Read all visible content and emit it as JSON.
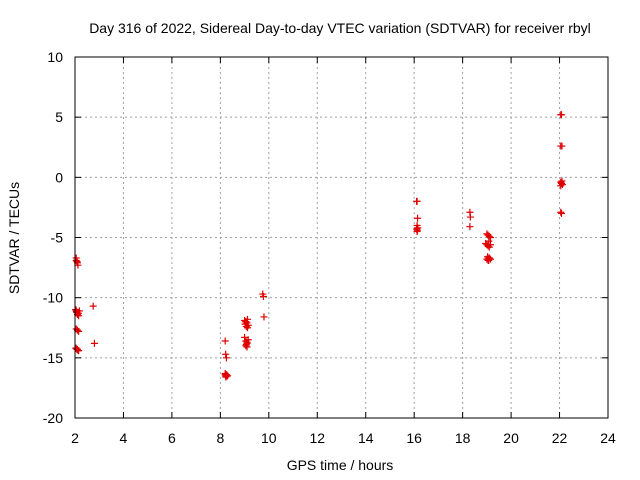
{
  "chart_data": {
    "type": "scatter",
    "title": "Day 316 of 2022, Sidereal Day-to-day VTEC variation (SDTVAR) for receiver rbyl",
    "xlabel": "GPS time / hours",
    "ylabel": "SDTVAR / TECUs",
    "xlim": [
      2,
      24
    ],
    "ylim": [
      -20,
      10
    ],
    "xticks": [
      2,
      4,
      6,
      8,
      10,
      12,
      14,
      16,
      18,
      20,
      22,
      24
    ],
    "yticks": [
      -20,
      -15,
      -10,
      -5,
      0,
      5,
      10
    ],
    "grid": true,
    "marker": "+",
    "color": "#e00000",
    "series": [
      {
        "name": "SDTVAR",
        "x": [
          2.05,
          2.05,
          2.08,
          2.1,
          2.12,
          2.03,
          2.05,
          2.08,
          2.12,
          2.15,
          2.03,
          2.06,
          2.1,
          2.14,
          2.18,
          2.05,
          2.1,
          2.15,
          2.03,
          2.08,
          2.13,
          2.05,
          2.1,
          2.15,
          2.75,
          2.8,
          8.2,
          8.22,
          8.25,
          8.2,
          8.22,
          8.25,
          8.2,
          8.23,
          8.26,
          8.3,
          9.0,
          9.05,
          9.1,
          9.15,
          9.02,
          9.07,
          9.12,
          9.0,
          9.05,
          9.1,
          9.15,
          9.05,
          9.1,
          9.05,
          9.12,
          9.07,
          9.1,
          9.75,
          9.78,
          9.8,
          16.1,
          16.12,
          16.14,
          16.12,
          16.15,
          16.1,
          16.13,
          16.12,
          18.3,
          18.32,
          18.3,
          19.0,
          19.05,
          19.1,
          19.15,
          19.08,
          18.95,
          19.0,
          19.05,
          19.1,
          19.15,
          19.03,
          19.08,
          19.0,
          19.05,
          19.1,
          19.15,
          19.08,
          22.05,
          22.08,
          22.05,
          22.1,
          22.05,
          22.08,
          22.12,
          22.05,
          22.1,
          22.08,
          22.05,
          22.08
        ],
        "y": [
          -6.7,
          -6.9,
          -7.0,
          -7.1,
          -7.3,
          -11.0,
          -11.1,
          -11.2,
          -11.3,
          -11.5,
          -11.0,
          -11.2,
          -11.4,
          -11.3,
          -11.1,
          -12.6,
          -12.7,
          -12.8,
          -14.2,
          -14.3,
          -14.4,
          -14.2,
          -14.3,
          -14.4,
          -10.7,
          -13.8,
          -13.6,
          -14.7,
          -15.0,
          -16.3,
          -16.5,
          -16.5,
          -16.4,
          -16.6,
          -16.4,
          -16.5,
          -11.9,
          -12.0,
          -12.1,
          -12.3,
          -12.2,
          -12.4,
          -12.5,
          -13.3,
          -13.6,
          -13.8,
          -13.5,
          -14.0,
          -14.1,
          -12.0,
          -11.8,
          -13.9,
          -13.7,
          -9.7,
          -9.9,
          -11.6,
          -2.0,
          -2.0,
          -3.4,
          -4.0,
          -4.2,
          -4.3,
          -4.4,
          -4.5,
          -2.9,
          -3.3,
          -4.1,
          -4.7,
          -4.8,
          -4.9,
          -5.0,
          -5.3,
          -5.5,
          -5.6,
          -5.7,
          -5.8,
          -5.6,
          -6.6,
          -6.7,
          -6.8,
          -6.9,
          -6.7,
          -6.8,
          -6.9,
          5.2,
          5.2,
          2.6,
          2.6,
          -0.4,
          -0.5,
          -0.6,
          -0.7,
          -0.3,
          -0.5,
          -2.9,
          -3.0
        ]
      }
    ]
  }
}
